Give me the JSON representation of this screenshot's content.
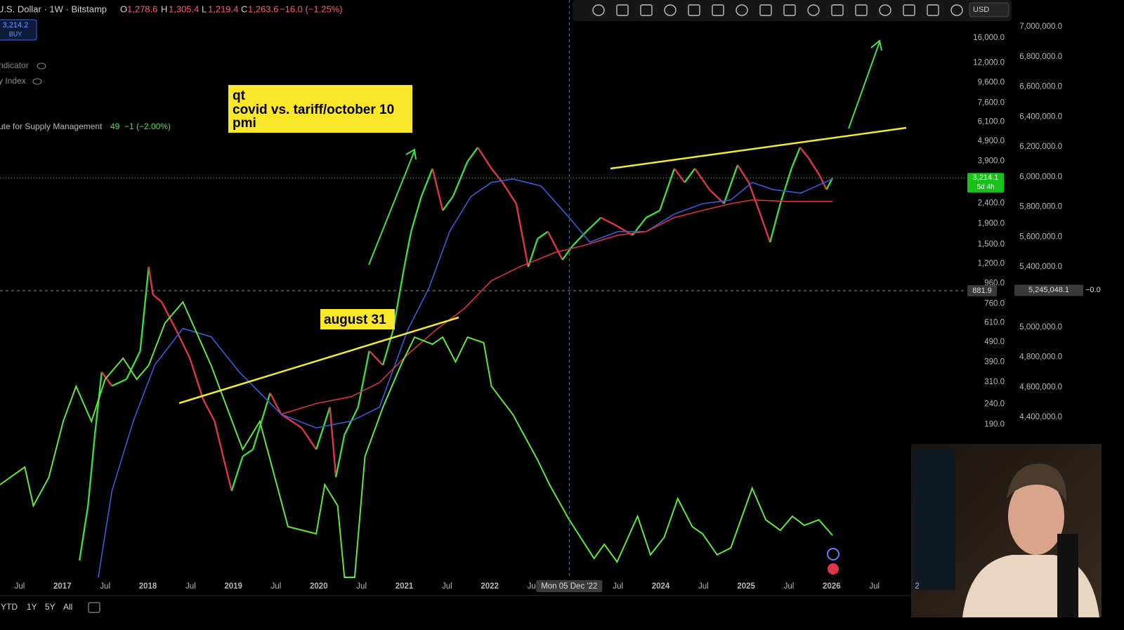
{
  "header": {
    "symbol": "U.S. Dollar · 1W · Bitstamp",
    "o_key": "O",
    "o": "1,278.6",
    "h_key": "H",
    "h": "1,305.4",
    "l_key": "L",
    "l": "1,219.4",
    "c_key": "C",
    "c": "1,263.6",
    "change": "−16.0 (−1.25%)",
    "badge_price": "3,214.2",
    "badge_action": "BUY"
  },
  "legend": {
    "row1": "ndicator",
    "row2": "y Index",
    "row3": "ute for Supply Management",
    "row3_value": "49",
    "row3_change": "−1 (−2.00%)"
  },
  "toolbar": {
    "currency": "USD"
  },
  "annotations": {
    "box_lines": [
      "qt",
      "covid vs. tariff/october 10",
      "pmi"
    ],
    "label": "august 31"
  },
  "markers": {
    "last_price": 3214.1,
    "last_price_label": "3,214.1",
    "countdown": "5d 4h",
    "crosshair_x": 2022.93,
    "crosshair_x_label": "Mon 05 Dec '22",
    "crosshair_y": 881.9,
    "crosshair_y2": 5245048.1,
    "crosshair_y2_label": "5,245,048.1",
    "crosshair_y2_change": "−0.0"
  },
  "bottom_bar": {
    "ranges": [
      "YTD",
      "1Y",
      "5Y",
      "All"
    ]
  },
  "chart_data": {
    "type": "line",
    "log_scale": true,
    "xlim": [
      2016.27,
      2027.3
    ],
    "xticks": [
      {
        "value": 2016.5,
        "label": "Jul"
      },
      2017,
      {
        "value": 2017.5,
        "label": "Jul"
      },
      2018,
      {
        "value": 2018.5,
        "label": "Jul"
      },
      2019,
      {
        "value": 2019.5,
        "label": "Jul"
      },
      2020,
      {
        "value": 2020.5,
        "label": "Jul"
      },
      2021,
      {
        "value": 2021.5,
        "label": "Jul"
      },
      2022,
      {
        "value": 2022.5,
        "label": "Jul"
      },
      {
        "value": 2023.5,
        "label": "Jul"
      },
      2024,
      {
        "value": 2024.5,
        "label": "Jul"
      },
      2025,
      {
        "value": 2025.5,
        "label": "Jul"
      },
      2026,
      {
        "value": 2026.5,
        "label": "Jul"
      },
      {
        "value": 2027,
        "label": "2"
      }
    ],
    "ylim": [
      33,
      24700
    ],
    "yticks": [
      {
        "value": 16000,
        "label": "16,000.0"
      },
      {
        "value": 12000,
        "label": "12,000.0"
      },
      {
        "value": 9600,
        "label": "9,600.0"
      },
      {
        "value": 7600,
        "label": "7,600.0"
      },
      {
        "value": 6100,
        "label": "6,100.0"
      },
      {
        "value": 4900,
        "label": "4,900.0"
      },
      {
        "value": 3900,
        "label": "3,900.0"
      },
      {
        "value": 2400,
        "label": "2,400.0"
      },
      {
        "value": 1900,
        "label": "1,900.0"
      },
      {
        "value": 1500,
        "label": "1,500.0"
      },
      {
        "value": 1200,
        "label": "1,200.0"
      },
      {
        "value": 960,
        "label": "960.0"
      },
      {
        "value": 760,
        "label": "760.0"
      },
      {
        "value": 610,
        "label": "610.0"
      },
      {
        "value": 490,
        "label": "490.0"
      },
      {
        "value": 390,
        "label": "390.0"
      },
      {
        "value": 310,
        "label": "310.0"
      },
      {
        "value": 240,
        "label": "240.0"
      },
      {
        "value": 190,
        "label": "190.0"
      }
    ],
    "y2lim": [
      3334000,
      7178000
    ],
    "y2ticks": [
      {
        "value": 7000000,
        "label": "7,000,000.0"
      },
      {
        "value": 6800000,
        "label": "6,800,000.0"
      },
      {
        "value": 6600000,
        "label": "6,600,000.0"
      },
      {
        "value": 6400000,
        "label": "6,400,000.0"
      },
      {
        "value": 6200000,
        "label": "6,200,000.0"
      },
      {
        "value": 6000000,
        "label": "6,000,000.0"
      },
      {
        "value": 5800000,
        "label": "5,800,000.0"
      },
      {
        "value": 5600000,
        "label": "5,600,000.0"
      },
      {
        "value": 5400000,
        "label": "5,400,000.0"
      },
      {
        "value": 5000000,
        "label": "5,000,000.0"
      },
      {
        "value": 4800000,
        "label": "4,800,000.0"
      },
      {
        "value": 4600000,
        "label": "4,600,000.0"
      },
      {
        "value": 4400000,
        "label": "4,400,000.0"
      }
    ],
    "series": [
      {
        "style": "candles",
        "color": "#3ddc3d",
        "down_color": "#e0344a",
        "x": [
          2017.2,
          2017.3,
          2017.38,
          2017.46,
          2017.58,
          2017.75,
          2017.91,
          2018.01,
          2018.06,
          2018.16,
          2018.33,
          2018.49,
          2018.65,
          2018.78,
          2018.9,
          2018.98,
          2019.11,
          2019.23,
          2019.43,
          2019.56,
          2019.8,
          2019.97,
          2020.13,
          2020.2,
          2020.3,
          2020.46,
          2020.59,
          2020.75,
          2020.87,
          2021.0,
          2021.08,
          2021.2,
          2021.33,
          2021.45,
          2021.57,
          2021.74,
          2021.86,
          2022.02,
          2022.15,
          2022.31,
          2022.45,
          2022.56,
          2022.68,
          2022.85,
          2022.97,
          2023.13,
          2023.3,
          2023.46,
          2023.67,
          2023.83,
          2023.99,
          2024.16,
          2024.28,
          2024.4,
          2024.57,
          2024.74,
          2024.9,
          2025.03,
          2025.15,
          2025.28,
          2025.4,
          2025.53,
          2025.63,
          2025.73,
          2025.86,
          2025.94,
          2026.01
        ],
        "values": [
          40,
          75,
          169,
          347,
          296,
          320,
          441,
          1160,
          842,
          777,
          563,
          408,
          252,
          198,
          122,
          89,
          132,
          143,
          273,
          214,
          183,
          143,
          232,
          104,
          169,
          232,
          442,
          376,
          563,
          1160,
          1737,
          2598,
          3578,
          2213,
          2598,
          3880,
          4557,
          3578,
          3049,
          2392,
          1160,
          1601,
          1737,
          1258,
          1477,
          1737,
          2039,
          1882,
          1668,
          2039,
          2213,
          3578,
          3049,
          3578,
          2814,
          2392,
          3725,
          3049,
          2213,
          1538,
          2392,
          3578,
          4557,
          4038,
          3302,
          2814,
          3214
        ]
      },
      {
        "style": "line",
        "color": "#3a5bd9",
        "x": [
          2017.42,
          2017.58,
          2017.83,
          2018.08,
          2018.41,
          2018.74,
          2019.07,
          2019.56,
          2019.97,
          2020.38,
          2020.71,
          2021.04,
          2021.29,
          2021.53,
          2021.78,
          2022.02,
          2022.27,
          2022.6,
          2022.93,
          2023.17,
          2023.5,
          2023.83,
          2024.16,
          2024.49,
          2024.82,
          2025.07,
          2025.31,
          2025.64,
          2026.01
        ],
        "values": [
          33,
          89,
          198,
          376,
          572,
          520,
          347,
          214,
          183,
          198,
          232,
          563,
          912,
          1737,
          2598,
          3049,
          3174,
          2929,
          2039,
          1538,
          1737,
          1737,
          2124,
          2392,
          2495,
          3049,
          2814,
          2700,
          3174
        ]
      },
      {
        "style": "line",
        "color": "#d9303f",
        "x": [
          2019.56,
          2019.97,
          2020.38,
          2020.71,
          2021.04,
          2021.37,
          2021.7,
          2022.02,
          2022.35,
          2022.76,
          2023.09,
          2023.5,
          2023.83,
          2024.16,
          2024.49,
          2024.82,
          2025.07,
          2025.48,
          2026.01
        ],
        "values": [
          214,
          242,
          262,
          308,
          425,
          563,
          717,
          989,
          1160,
          1364,
          1477,
          1668,
          1737,
          2039,
          2213,
          2392,
          2495,
          2455,
          2455
        ]
      },
      {
        "style": "line",
        "axis": "y2",
        "color": "#5ee83a",
        "x": [
          2016.27,
          2016.56,
          2016.66,
          2016.84,
          2017.01,
          2017.16,
          2017.34,
          2017.5,
          2017.71,
          2017.87,
          2018.01,
          2018.2,
          2018.41,
          2018.74,
          2019.11,
          2019.31,
          2019.64,
          2019.97,
          2020.07,
          2020.22,
          2020.3,
          2020.42,
          2020.54,
          2020.75,
          2020.96,
          2021.12,
          2021.33,
          2021.45,
          2021.6,
          2021.74,
          2021.93,
          2022.02,
          2022.27,
          2022.56,
          2022.7,
          2022.93,
          2023.22,
          2023.34,
          2023.49,
          2023.73,
          2023.88,
          2024.04,
          2024.2,
          2024.37,
          2024.49,
          2024.66,
          2024.82,
          2025.07,
          2025.23,
          2025.4,
          2025.54,
          2025.68,
          2025.85,
          2026.01
        ],
        "values": [
          3951000,
          4068000,
          3811000,
          3998000,
          4372000,
          4606000,
          4372000,
          4653000,
          4793000,
          4653000,
          4746000,
          5027000,
          5167000,
          4746000,
          4185000,
          4372000,
          3671000,
          3624000,
          3951000,
          3811000,
          3334000,
          3334000,
          4138000,
          4466000,
          4746000,
          4933000,
          4886000,
          4933000,
          4769000,
          4933000,
          4896000,
          4606000,
          4419000,
          4115000,
          3951000,
          3717000,
          3460000,
          3554000,
          3437000,
          3741000,
          3484000,
          3600000,
          3858000,
          3671000,
          3624000,
          3484000,
          3530000,
          3928000,
          3717000,
          3647000,
          3741000,
          3680000,
          3717000,
          3614000
        ]
      }
    ]
  }
}
